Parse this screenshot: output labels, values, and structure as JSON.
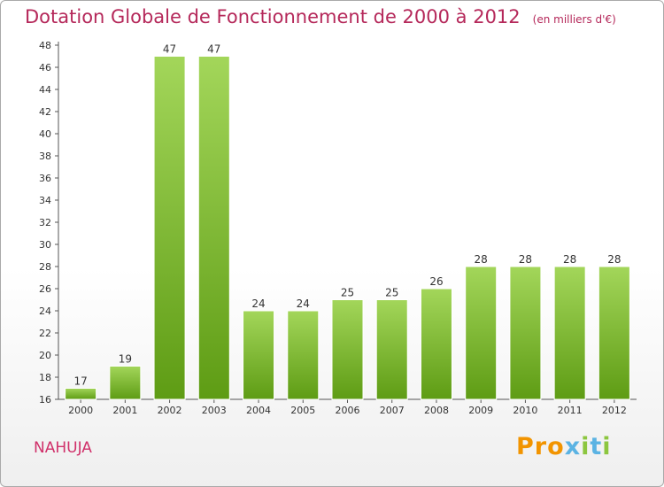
{
  "title": "Dotation Globale de Fonctionnement de 2000 à 2012",
  "subtitle": "(en milliers d'€)",
  "commune": "NAHUJA",
  "logo": {
    "text": "Proxiti",
    "letters": [
      "P",
      "r",
      "o",
      "x",
      "i",
      "t",
      "i"
    ],
    "colors": [
      "#f29400",
      "#f29400",
      "#f29400",
      "#5bb3e3",
      "#8cc63f",
      "#5bb3e3",
      "#8cc63f"
    ]
  },
  "chart_data": {
    "type": "bar",
    "categories": [
      "2000",
      "2001",
      "2002",
      "2003",
      "2004",
      "2005",
      "2006",
      "2007",
      "2008",
      "2009",
      "2010",
      "2011",
      "2012"
    ],
    "values": [
      17,
      19,
      47,
      47,
      24,
      24,
      25,
      25,
      26,
      28,
      28,
      28,
      28
    ],
    "ylim": [
      16,
      48
    ],
    "yticks": [
      16,
      18,
      20,
      22,
      24,
      26,
      28,
      30,
      32,
      34,
      36,
      38,
      40,
      42,
      44,
      46,
      48
    ],
    "grid": false,
    "title": "Dotation Globale de Fonctionnement de 2000 à 2012",
    "xlabel": "",
    "ylabel": "",
    "colors": {
      "bar_light": "#a3d65a",
      "bar_dark": "#5e9c14",
      "title": "#b5285a"
    }
  }
}
